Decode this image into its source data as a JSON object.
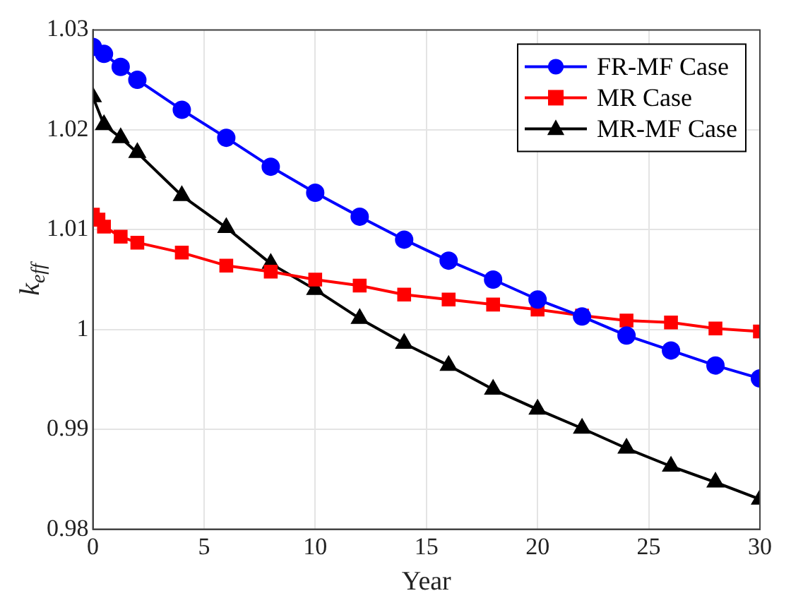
{
  "chart_data": {
    "type": "line",
    "xlabel": "Year",
    "ylabel": "k$_{eff}$",
    "xlim": [
      0,
      30
    ],
    "xticks": [
      0,
      5,
      10,
      15,
      20,
      25,
      30
    ],
    "ylim": [
      0.98,
      1.03
    ],
    "yticks": [
      0.98,
      0.99,
      1,
      1.01,
      1.02,
      1.03
    ],
    "grid": true,
    "legend": "top right",
    "line_style": "solid",
    "series": [
      {
        "name": "FR-MF Case",
        "color": "#0000ff",
        "marker": "circle",
        "x": [
          0,
          0.5,
          1.25,
          2,
          4,
          6,
          8,
          10,
          12,
          14,
          16,
          18,
          20,
          22,
          24,
          26,
          28,
          30
        ],
        "values": [
          1.0283,
          1.0276,
          1.0263,
          1.025,
          1.022,
          1.0192,
          1.0163,
          1.0137,
          1.0113,
          1.009,
          1.0069,
          1.005,
          1.003,
          1.0013,
          0.9994,
          0.9979,
          0.9964,
          0.9951
        ]
      },
      {
        "name": "MR Case",
        "color": "#ff0000",
        "marker": "square",
        "x": [
          0,
          0.25,
          0.5,
          1.25,
          2,
          4,
          6,
          8,
          10,
          12,
          14,
          16,
          18,
          20,
          22,
          24,
          26,
          28,
          30
        ],
        "values": [
          1.0115,
          1.011,
          1.0103,
          1.0093,
          1.0087,
          1.0077,
          1.0064,
          1.0058,
          1.005,
          1.0044,
          1.0035,
          1.003,
          1.0025,
          1.002,
          1.0014,
          1.0009,
          1.0007,
          1.0001,
          0.9998
        ]
      },
      {
        "name": "MR-MF Case",
        "color": "#000000",
        "marker": "triangle",
        "x": [
          0,
          0.5,
          1.25,
          2,
          4,
          6,
          8,
          10,
          12,
          14,
          16,
          18,
          20,
          22,
          24,
          26,
          28,
          30
        ],
        "values": [
          1.0233,
          1.0205,
          1.0192,
          1.0177,
          1.0134,
          1.0102,
          1.0066,
          1.004,
          1.0011,
          0.9986,
          0.9964,
          0.994,
          0.992,
          0.9901,
          0.9881,
          0.9863,
          0.9847,
          0.983
        ]
      }
    ]
  }
}
